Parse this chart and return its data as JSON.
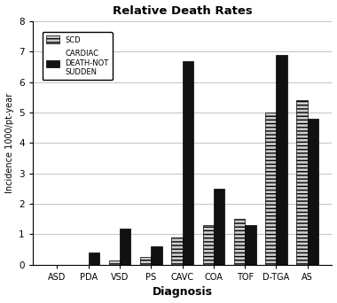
{
  "title": "Relative Death Rates",
  "xlabel": "Diagnosis",
  "ylabel": "Incidence 1000/pt-year",
  "categories": [
    "ASD",
    "PDA",
    "VSD",
    "PS",
    "CAVC",
    "COA",
    "TOF",
    "D-TGA",
    "AS"
  ],
  "scd": [
    0.0,
    0.0,
    0.15,
    0.25,
    0.9,
    1.3,
    1.5,
    5.0,
    5.4
  ],
  "cardiac_not_sudden": [
    0.0,
    0.4,
    1.2,
    0.6,
    6.7,
    2.5,
    1.3,
    6.9,
    4.8
  ],
  "ylim": [
    0,
    8
  ],
  "yticks": [
    0,
    1,
    2,
    3,
    4,
    5,
    6,
    7,
    8
  ],
  "bar_width": 0.35,
  "cardiac_color": "#111111",
  "background_color": "#ffffff",
  "legend_scd": "SCD",
  "legend_cardiac": "CARDIAC\nDEATH-NOT\nSUDDEN"
}
